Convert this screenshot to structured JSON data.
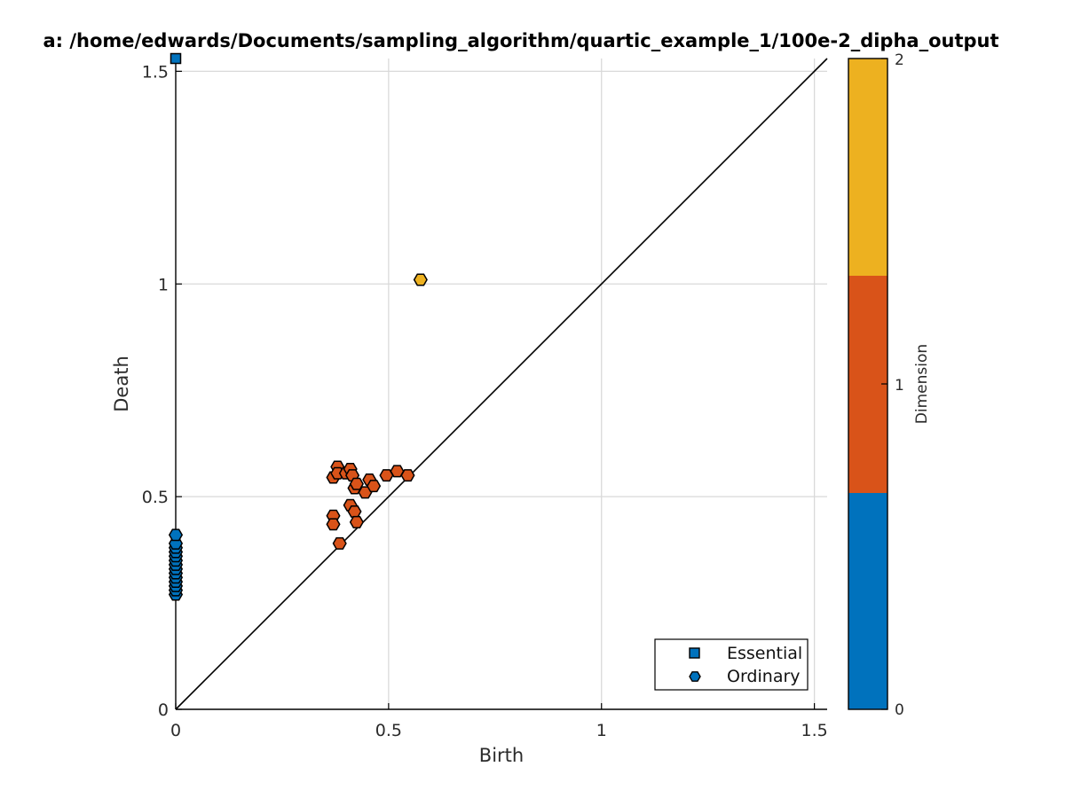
{
  "chart_data": {
    "type": "scatter",
    "title": "a: /home/edwards/Documents/sampling_algorithm/quartic_example_1/100e-2_dipha_output",
    "xlabel": "Birth",
    "ylabel": "Death",
    "xlim": [
      0,
      1.53
    ],
    "ylim": [
      0,
      1.53
    ],
    "x_ticks": [
      {
        "value": 0,
        "label": "0"
      },
      {
        "value": 0.5,
        "label": "0.5"
      },
      {
        "value": 1,
        "label": "1"
      },
      {
        "value": 1.5,
        "label": "1.5"
      }
    ],
    "y_ticks": [
      {
        "value": 0,
        "label": "0"
      },
      {
        "value": 0.5,
        "label": "0.5"
      },
      {
        "value": 1,
        "label": "1"
      },
      {
        "value": 1.5,
        "label": "1.5"
      }
    ],
    "grid": true,
    "diagonal": true,
    "legend": {
      "placement": "bottom-right",
      "entries": [
        {
          "label": "Essential",
          "marker": "square"
        },
        {
          "label": "Ordinary",
          "marker": "hexagon"
        }
      ]
    },
    "colorbar": {
      "label": "Dimension",
      "range": [
        0,
        2
      ],
      "ticks": [
        "0",
        "1",
        "2"
      ],
      "colors": [
        "#0072bd",
        "#d95319",
        "#edb120"
      ]
    },
    "dimension_colors": {
      "0": "#0072bd",
      "1": "#d95319",
      "2": "#edb120"
    },
    "series": [
      {
        "marker": "square",
        "points": [
          {
            "x": 0,
            "y": 1.53,
            "dim": 0
          }
        ]
      },
      {
        "marker": "hexagon",
        "points": [
          {
            "x": 0,
            "y": 0.27,
            "dim": 0
          },
          {
            "x": 0,
            "y": 0.28,
            "dim": 0
          },
          {
            "x": 0,
            "y": 0.29,
            "dim": 0
          },
          {
            "x": 0,
            "y": 0.3,
            "dim": 0
          },
          {
            "x": 0,
            "y": 0.31,
            "dim": 0
          },
          {
            "x": 0,
            "y": 0.32,
            "dim": 0
          },
          {
            "x": 0,
            "y": 0.33,
            "dim": 0
          },
          {
            "x": 0,
            "y": 0.34,
            "dim": 0
          },
          {
            "x": 0,
            "y": 0.35,
            "dim": 0
          },
          {
            "x": 0,
            "y": 0.36,
            "dim": 0
          },
          {
            "x": 0,
            "y": 0.37,
            "dim": 0
          },
          {
            "x": 0,
            "y": 0.38,
            "dim": 0
          },
          {
            "x": 0,
            "y": 0.39,
            "dim": 0
          },
          {
            "x": 0,
            "y": 0.41,
            "dim": 0
          },
          {
            "x": 0.38,
            "y": 0.57,
            "dim": 1
          },
          {
            "x": 0.37,
            "y": 0.545,
            "dim": 1
          },
          {
            "x": 0.38,
            "y": 0.555,
            "dim": 1
          },
          {
            "x": 0.4,
            "y": 0.555,
            "dim": 1
          },
          {
            "x": 0.41,
            "y": 0.565,
            "dim": 1
          },
          {
            "x": 0.415,
            "y": 0.55,
            "dim": 1
          },
          {
            "x": 0.42,
            "y": 0.52,
            "dim": 1
          },
          {
            "x": 0.425,
            "y": 0.53,
            "dim": 1
          },
          {
            "x": 0.445,
            "y": 0.51,
            "dim": 1
          },
          {
            "x": 0.455,
            "y": 0.54,
            "dim": 1
          },
          {
            "x": 0.465,
            "y": 0.525,
            "dim": 1
          },
          {
            "x": 0.495,
            "y": 0.55,
            "dim": 1
          },
          {
            "x": 0.52,
            "y": 0.56,
            "dim": 1
          },
          {
            "x": 0.545,
            "y": 0.55,
            "dim": 1
          },
          {
            "x": 0.37,
            "y": 0.455,
            "dim": 1
          },
          {
            "x": 0.37,
            "y": 0.435,
            "dim": 1
          },
          {
            "x": 0.41,
            "y": 0.48,
            "dim": 1
          },
          {
            "x": 0.42,
            "y": 0.465,
            "dim": 1
          },
          {
            "x": 0.425,
            "y": 0.44,
            "dim": 1
          },
          {
            "x": 0.385,
            "y": 0.39,
            "dim": 1
          },
          {
            "x": 0.575,
            "y": 1.01,
            "dim": 2
          }
        ]
      }
    ]
  }
}
